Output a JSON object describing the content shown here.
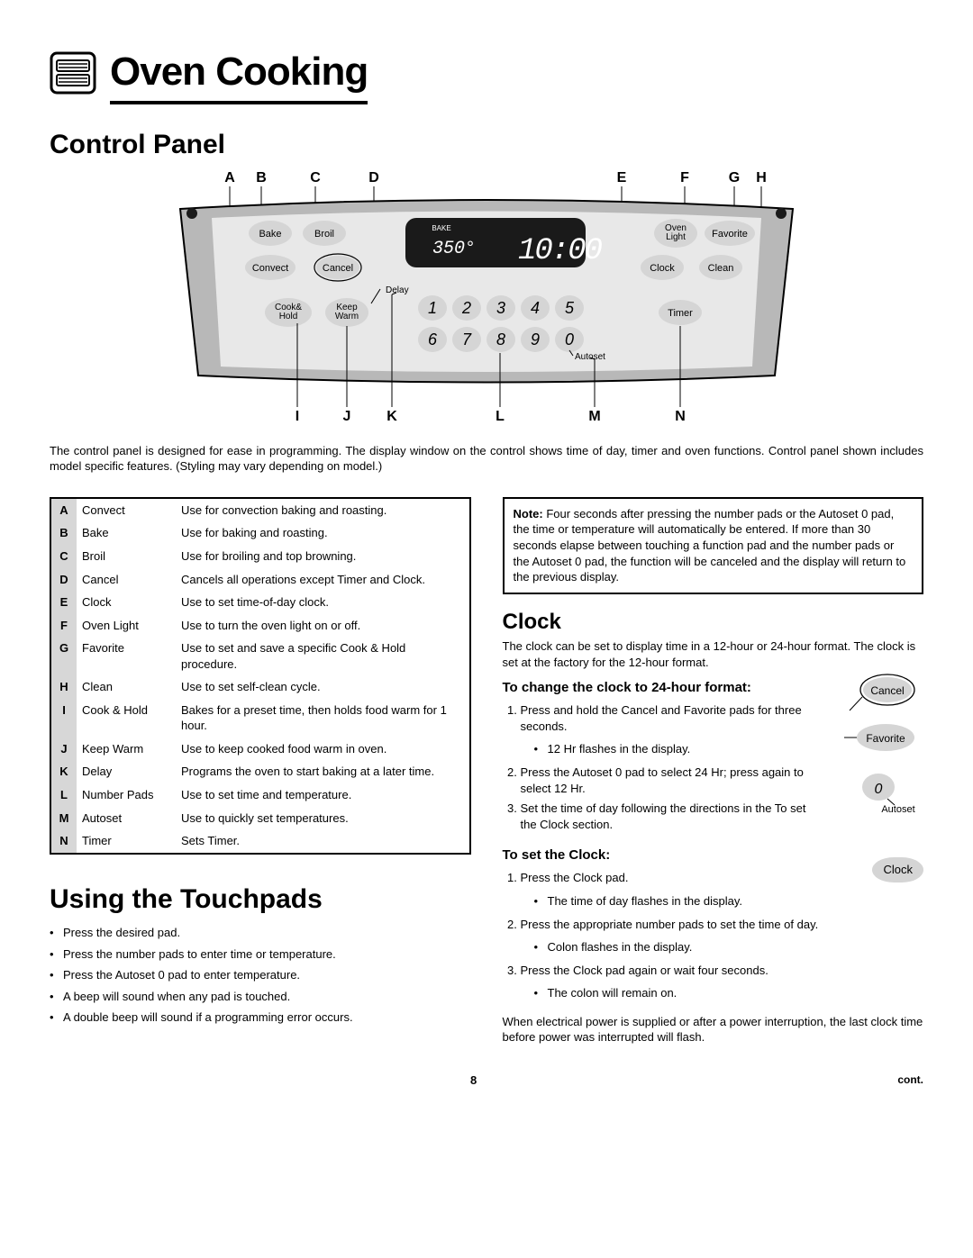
{
  "header": {
    "title": "Oven Cooking"
  },
  "section1": {
    "heading": "Control Panel",
    "labels_top": [
      "A",
      "B",
      "C",
      "D",
      "E",
      "F",
      "G",
      "H"
    ],
    "labels_bottom": [
      "I",
      "J",
      "K",
      "L",
      "M",
      "N"
    ],
    "display": {
      "mode": "BAKE",
      "temp": "350°",
      "time": "10:00"
    },
    "buttons": {
      "bake": "Bake",
      "broil": "Broil",
      "convect": "Convect",
      "cancel": "Cancel",
      "cook_hold": "Cook&\nHold",
      "keep_warm": "Keep\nWarm",
      "delay": "Delay",
      "oven_light": "Oven\nLight",
      "favorite": "Favorite",
      "clock": "Clock",
      "clean": "Clean",
      "timer": "Timer",
      "autoset": "Autoset"
    },
    "keypad": [
      "1",
      "2",
      "3",
      "4",
      "5",
      "6",
      "7",
      "8",
      "9",
      "0"
    ],
    "intro": "The control panel is designed for ease in programming. The display window on the control shows time of day, timer and oven functions. Control panel shown includes model specific features. (Styling may vary depending on model.)"
  },
  "functions": [
    {
      "k": "A",
      "n": "Convect",
      "d": "Use for convection baking and roasting."
    },
    {
      "k": "B",
      "n": "Bake",
      "d": "Use for baking and roasting."
    },
    {
      "k": "C",
      "n": "Broil",
      "d": "Use for broiling and top browning."
    },
    {
      "k": "D",
      "n": "Cancel",
      "d": "Cancels all operations except Timer and Clock."
    },
    {
      "k": "E",
      "n": "Clock",
      "d": "Use to set time-of-day clock."
    },
    {
      "k": "F",
      "n": "Oven Light",
      "d": "Use to turn the oven light on or off."
    },
    {
      "k": "G",
      "n": "Favorite",
      "d": "Use to set and save a specific Cook & Hold procedure."
    },
    {
      "k": "H",
      "n": "Clean",
      "d": "Use to set self-clean cycle."
    },
    {
      "k": "I",
      "n": "Cook & Hold",
      "d": "Bakes for a preset time, then holds food warm for 1 hour."
    },
    {
      "k": "J",
      "n": "Keep Warm",
      "d": "Use to keep cooked food warm in oven."
    },
    {
      "k": "K",
      "n": "Delay",
      "d": "Programs the oven to start baking at a later time."
    },
    {
      "k": "L",
      "n": "Number Pads",
      "d": "Use to set time and temperature."
    },
    {
      "k": "M",
      "n": "Autoset",
      "d": "Use to quickly set temperatures."
    },
    {
      "k": "N",
      "n": "Timer",
      "d": "Sets Timer."
    }
  ],
  "touchpads": {
    "heading": "Using the Touchpads",
    "items": [
      "Press the desired pad.",
      "Press the number pads to enter time or temperature.",
      "Press the Autoset 0 pad to enter temperature.",
      "A beep will sound when any pad is touched.",
      "A double beep will sound if a programming error occurs."
    ]
  },
  "note": {
    "prefix": "Note:",
    "text": " Four seconds after pressing the number pads or the Autoset 0 pad, the time or temperature will automatically be entered. If more than 30 seconds elapse between touching a function pad and the number pads or the Autoset 0 pad, the function will be canceled and the display will return to the previous display."
  },
  "clock": {
    "heading": "Clock",
    "intro": "The clock can be set to display time in a 12-hour or 24-hour format. The clock is set at the factory for the 12-hour format.",
    "change_h": "To change the clock to 24-hour format:",
    "change_steps": [
      {
        "t": "Press and hold the Cancel and Favorite pads for three seconds.",
        "sub": [
          "12 Hr flashes in the display."
        ]
      },
      {
        "t": "Press the Autoset 0 pad to select 24 Hr; press again to select 12 Hr."
      },
      {
        "t": "Set the time of day following the directions in the To set the Clock section."
      }
    ],
    "set_h": "To set the Clock:",
    "set_steps": [
      {
        "t": "Press the Clock pad.",
        "sub": [
          "The time of day flashes in the display."
        ]
      },
      {
        "t": "Press the appropriate number pads to set the time of day.",
        "sub": [
          "Colon flashes in the display."
        ]
      },
      {
        "t": "Press the Clock pad again or wait four seconds.",
        "sub": [
          "The colon will remain on."
        ]
      }
    ],
    "outro": "When electrical power is supplied or after a power interruption, the last clock time before power was interrupted will flash.",
    "icons": {
      "cancel": "Cancel",
      "favorite": "Favorite",
      "autoset_label": "Autoset",
      "zero": "0",
      "clock": "Clock"
    }
  },
  "footer": {
    "page": "8",
    "cont": "cont."
  },
  "style": {
    "colors": {
      "panel_band": "#b8b8b8",
      "panel_body": "#e8e8e8",
      "display_bg": "#1a1a1a",
      "display_text": "#ffffff",
      "key_fill": "#d5d5d5",
      "text": "#000000",
      "bg": "#ffffff",
      "table_header_bg": "#d7d7d7"
    },
    "fonts": {
      "title_size": 44,
      "h2_size": 30,
      "h3_size": 24,
      "body_size": 13
    }
  }
}
